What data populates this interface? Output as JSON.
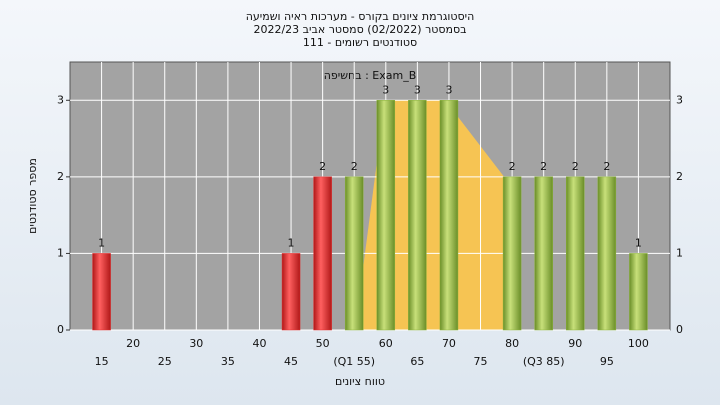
{
  "chart_data": {
    "type": "bar",
    "title": "היסטוגרמת ציונים בקורס - מערכות ראיה ושמיעה",
    "subtitle": "בסמסטר  (02/2022)  סמסטר אביב 2022/23",
    "subtitle2": "סטודנטים רשומים - 111",
    "annotation": "בחשיפה : Exam_B",
    "y_label": "מספר סטודנטים",
    "x_label": "טווח ציונים",
    "categories": [
      "15",
      "20",
      "25",
      "30",
      "35",
      "40",
      "45",
      "50",
      "(Q1 55)",
      "60",
      "65",
      "70",
      "75",
      "80",
      "(Q3 85)",
      "90",
      "95",
      "100"
    ],
    "values": [
      1,
      0,
      0,
      0,
      0,
      0,
      1,
      2,
      2,
      3,
      3,
      3,
      0,
      2,
      2,
      2,
      2,
      1
    ],
    "colors": [
      "#e03030",
      "#e03030",
      "#e03030",
      "#e03030",
      "#e03030",
      "#e03030",
      "#e03030",
      "#e03030",
      "#8cb43c",
      "#8cb43c",
      "#8cb43c",
      "#8cb43c",
      "#8cb43c",
      "#8cb43c",
      "#8cb43c",
      "#8cb43c",
      "#8cb43c",
      "#8cb43c"
    ],
    "ylim": [
      0,
      3.5
    ],
    "yticks": [
      0,
      1,
      2,
      3
    ],
    "grid": true
  }
}
